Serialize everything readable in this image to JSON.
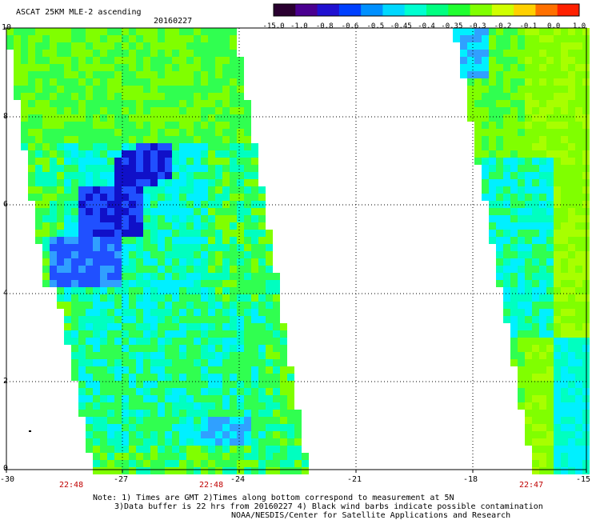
{
  "header": {
    "title": "ASCAT 25KM MLE-2 ascending",
    "date": "20160227"
  },
  "colorbar": {
    "labels": [
      "-15.0",
      "-1.0",
      "-0.8",
      "-0.6",
      "-0.5",
      "-0.45",
      "-0.4",
      "-0.35",
      "-0.3",
      "-0.2",
      "-0.1",
      "0.0",
      "1.0"
    ],
    "colors": [
      "#2a0030",
      "#4a0090",
      "#2010d0",
      "#0040ff",
      "#0090ff",
      "#00d8ff",
      "#00ffd0",
      "#00ff80",
      "#20ff30",
      "#80ff00",
      "#d0ff00",
      "#ffd000",
      "#ff7000",
      "#ff2000"
    ]
  },
  "map": {
    "y_ticks": [
      "10",
      "8",
      "6",
      "4",
      "2",
      "0"
    ],
    "x_ticks": [
      "-30",
      "-27",
      "-24",
      "-21",
      "-18",
      "-15"
    ],
    "pass_times": [
      "22:48",
      "22:48",
      "22:47"
    ],
    "palette": {
      "dark_blue": "#1010c8",
      "blue": "#2050ff",
      "mid_blue": "#30a0ff",
      "cyan": "#00f0ff",
      "aqua": "#00ffc0",
      "green": "#30ff50",
      "lime": "#80ff00",
      "yellow_green": "#a8ff00"
    }
  },
  "notes": {
    "line1": "Note: 1) Times are GMT 2)Times along bottom correspond to measurement at 5N",
    "line2": "3)Data buffer is 22 hrs from 20160227 4) Black wind barbs indicate possible contamination",
    "line3": "NOAA/NESDIS/Center for Satellite Applications and Research"
  }
}
